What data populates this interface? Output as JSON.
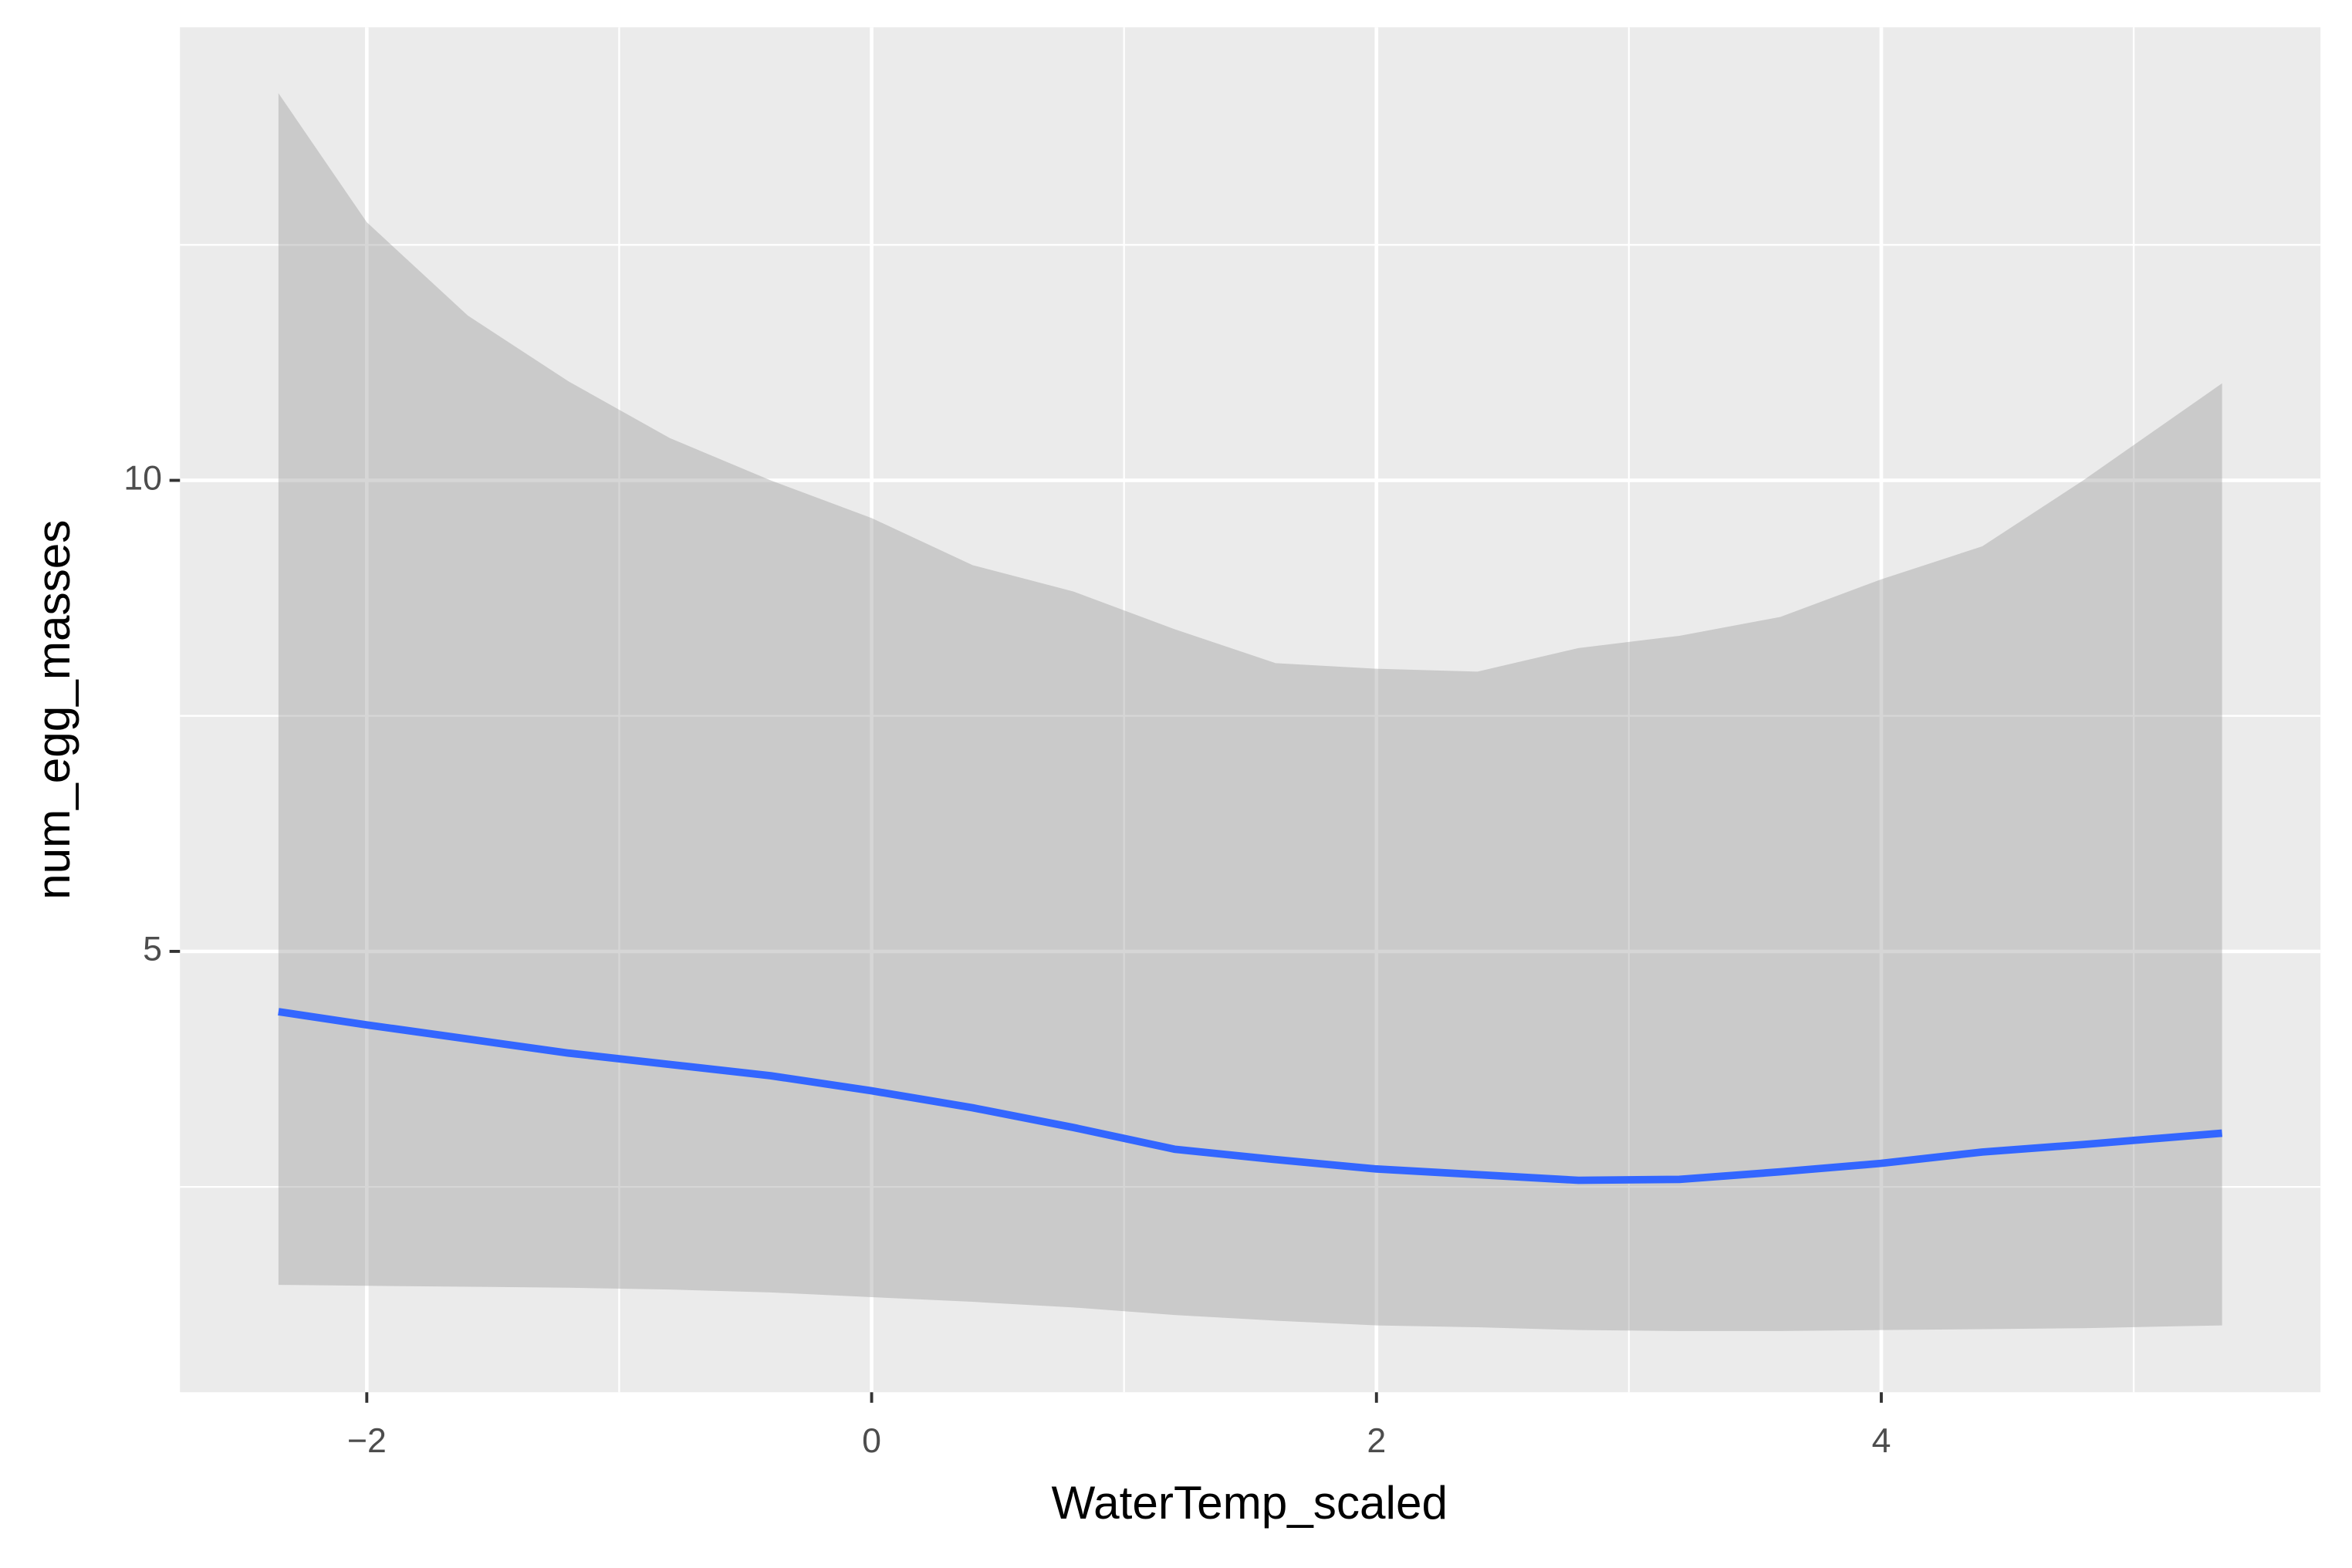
{
  "chart_data": {
    "type": "smooth",
    "x_label": "WaterTemp_scaled",
    "y_label": "num_egg_masses",
    "x": [
      -2.35,
      -2,
      -1.6,
      -1.2,
      -0.8,
      -0.4,
      0,
      0.4,
      0.8,
      1.2,
      1.6,
      2,
      2.4,
      2.8,
      3.2,
      3.6,
      4,
      4.4,
      4.8,
      5.35
    ],
    "y": [
      4.36,
      4.22,
      4.07,
      3.92,
      3.8,
      3.68,
      3.52,
      3.34,
      3.13,
      2.9,
      2.79,
      2.69,
      2.63,
      2.57,
      2.58,
      2.66,
      2.75,
      2.87,
      2.95,
      3.07
    ],
    "ymin": [
      1.46,
      1.45,
      1.44,
      1.43,
      1.41,
      1.38,
      1.33,
      1.28,
      1.22,
      1.14,
      1.08,
      1.03,
      1.01,
      0.98,
      0.97,
      0.97,
      0.98,
      0.99,
      1.0,
      1.03
    ],
    "ymax": [
      14.11,
      12.74,
      11.75,
      11.05,
      10.45,
      10.0,
      9.6,
      9.1,
      8.82,
      8.42,
      8.06,
      8.0,
      7.97,
      8.22,
      8.35,
      8.55,
      8.95,
      9.3,
      10.0,
      11.03
    ],
    "color": "#3366FF",
    "ribbon_color": "#999999",
    "xlim": [
      -2.74,
      5.74
    ],
    "ylim": [
      0.32,
      14.81
    ],
    "xticks": [
      {
        "value": -2,
        "label": "−2"
      },
      0,
      2,
      4
    ],
    "yticks": [
      5,
      10
    ],
    "x_minor_ticks": [
      -1,
      1,
      3,
      5
    ],
    "y_minor_ticks": [
      2.5,
      7.5,
      12.5
    ],
    "grid": true
  }
}
